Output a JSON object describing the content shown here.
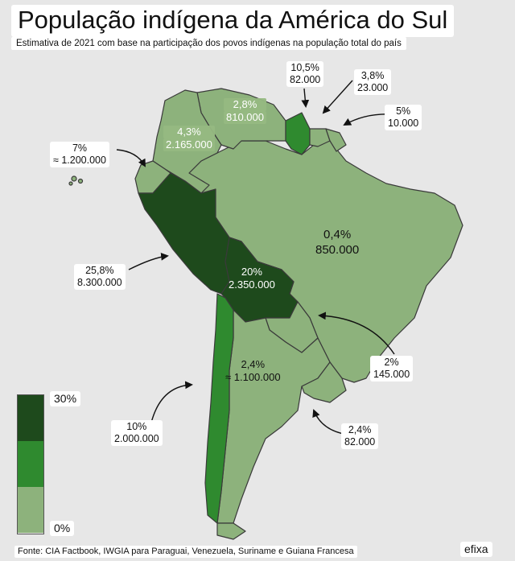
{
  "title": "População indígena da América do Sul",
  "subtitle": "Estimativa de 2021 com base na participação dos povos indígenas na população total do país",
  "colors": {
    "background": "#e7e7e7",
    "low": "#8db27c",
    "mid": "#2f8a2f",
    "high": "#1e4a1c",
    "border": "#3a3a3a"
  },
  "legend": {
    "max_label": "30%",
    "min_label": "0%"
  },
  "countries": {
    "guyana": {
      "percent": "10,5%",
      "population": "82.000"
    },
    "suriname": {
      "percent": "3,8%",
      "population": "23.000"
    },
    "french_guiana": {
      "percent": "5%",
      "population": "10.000"
    },
    "venezuela": {
      "percent": "2,8%",
      "population": "810.000"
    },
    "colombia": {
      "percent": "4,3%",
      "population": "2.165.000"
    },
    "ecuador": {
      "percent": "7%",
      "population": "≈ 1.200.000"
    },
    "brazil": {
      "percent": "0,4%",
      "population": "850.000"
    },
    "peru": {
      "percent": "25,8%",
      "population": "8.300.000"
    },
    "bolivia": {
      "percent": "20%",
      "population": "2.350.000"
    },
    "paraguay": {
      "percent": "2%",
      "population": "145.000"
    },
    "argentina": {
      "percent": "2,4%",
      "population": "≈ 1.100.000"
    },
    "chile": {
      "percent": "10%",
      "population": "2.000.000"
    },
    "uruguay": {
      "percent": "2,4%",
      "population": "82.000"
    }
  },
  "source": "Fonte: CIA Factbook, IWGIA para Paraguai, Venezuela, Suriname e Guiana Francesa",
  "brand": "efixa"
}
